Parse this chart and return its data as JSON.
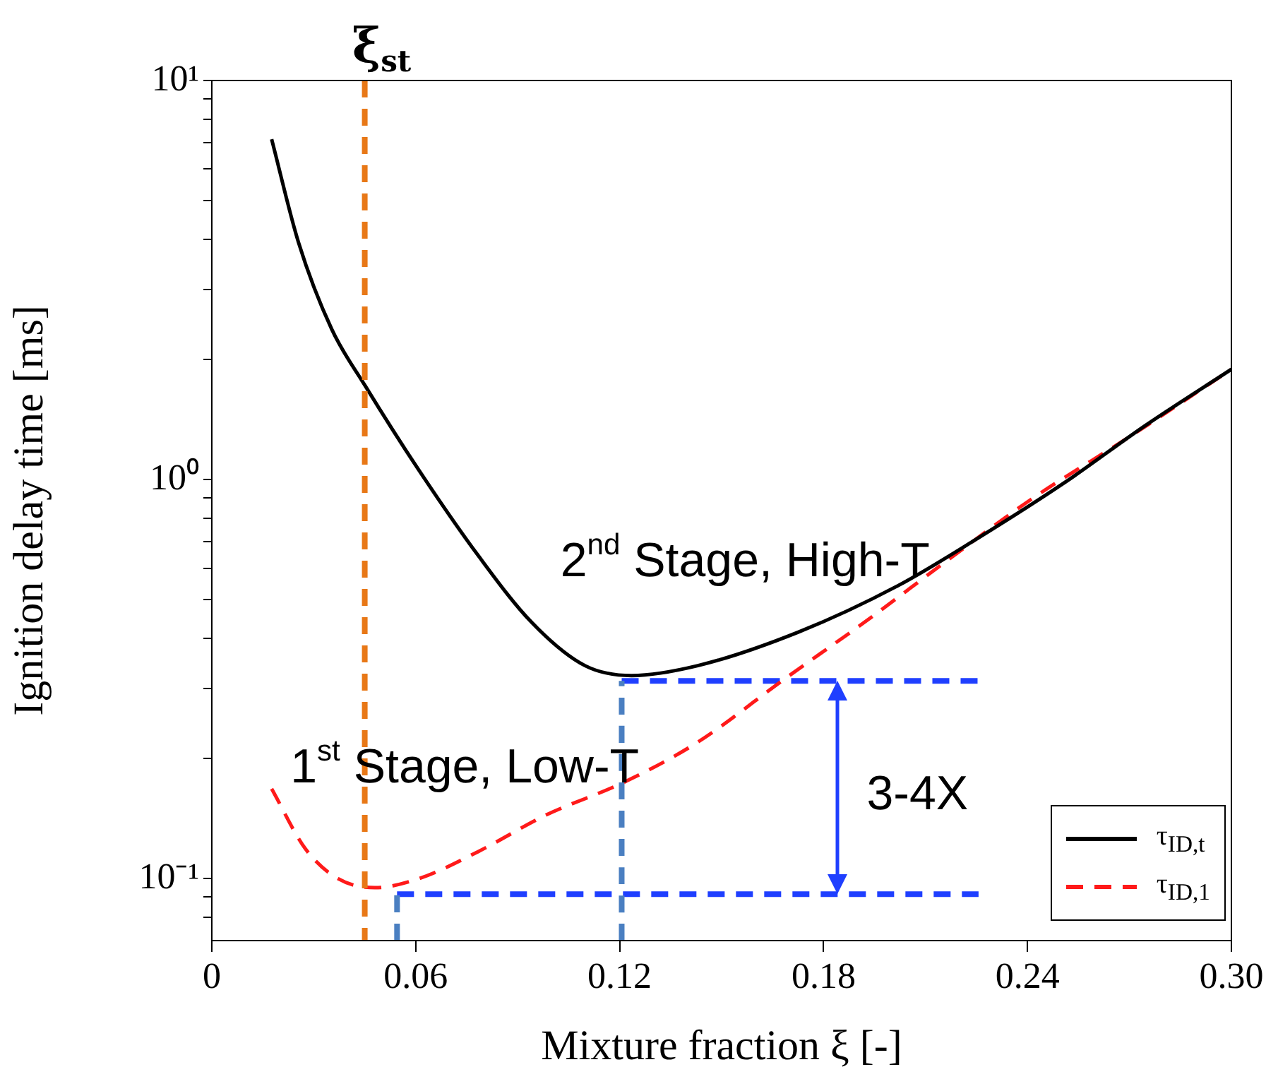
{
  "chart_data": {
    "type": "line",
    "xlabel": "Mixture fraction ξ [-]",
    "ylabel": "Ignition delay time [ms]",
    "log": "y",
    "xlim": [
      0,
      0.3
    ],
    "ylim": [
      0.07,
      10
    ],
    "xticks": [
      0,
      0.06,
      0.12,
      0.18,
      0.24,
      {
        "value": 0.3,
        "label": "0.30"
      }
    ],
    "yticks": [
      {
        "value": 0.08,
        "label": null
      },
      {
        "value": 0.09,
        "label": null
      },
      {
        "value": 0.1,
        "label": "10⁻¹"
      },
      {
        "value": 0.2,
        "label": null
      },
      {
        "value": 0.3,
        "label": null
      },
      {
        "value": 0.4,
        "label": null
      },
      {
        "value": 0.5,
        "label": null
      },
      {
        "value": 0.6,
        "label": null
      },
      {
        "value": 0.7,
        "label": null
      },
      {
        "value": 0.8,
        "label": null
      },
      {
        "value": 0.9,
        "label": null
      },
      {
        "value": 1,
        "label": "10⁰"
      },
      {
        "value": 2,
        "label": null
      },
      {
        "value": 3,
        "label": null
      },
      {
        "value": 4,
        "label": null
      },
      {
        "value": 5,
        "label": null
      },
      {
        "value": 6,
        "label": null
      },
      {
        "value": 7,
        "label": null
      },
      {
        "value": 8,
        "label": null
      },
      {
        "value": 9,
        "label": null
      },
      {
        "value": 10,
        "label": "10¹"
      }
    ],
    "grid": false,
    "legend": "bottom right",
    "marker": "none",
    "line_style": "solid",
    "series": [
      {
        "name": "τ$_{ID,t}$",
        "color": "#000000",
        "x": [
          0.0176,
          0.0255,
          0.0353,
          0.0451,
          0.0608,
          0.0784,
          0.0941,
          0.1098,
          0.1235,
          0.143,
          0.1726,
          0.202,
          0.2235,
          0.251,
          0.2746,
          0.3
        ],
        "values": [
          7.13,
          3.93,
          2.38,
          1.72,
          1.06,
          0.645,
          0.439,
          0.342,
          0.323,
          0.342,
          0.415,
          0.543,
          0.697,
          0.984,
          1.365,
          1.89
        ]
      },
      {
        "name": "τ$_{ID,1}$",
        "color": "#ff1a1a",
        "line_style": "dashed",
        "x": [
          0.0176,
          0.0275,
          0.0372,
          0.048,
          0.0608,
          0.0784,
          0.098,
          0.1216,
          0.143,
          0.1686,
          0.192,
          0.2157,
          0.2412,
          0.2706,
          0.3
        ],
        "values": [
          0.168,
          0.119,
          0.1,
          0.095,
          0.1,
          0.117,
          0.144,
          0.175,
          0.22,
          0.317,
          0.439,
          0.621,
          0.894,
          1.29,
          1.89
        ]
      },
      {
        "color": "#4a7fc1",
        "line_style": "dashed",
        "x": [
          0.0545,
          0.0545
        ],
        "values": [
          0.07,
          0.0915
        ]
      },
      {
        "color": "#4a7fc1",
        "line_style": "dashed",
        "x": [
          0.1206,
          0.1206
        ],
        "values": [
          0.07,
          0.313
        ]
      },
      {
        "color": "#1f3fff",
        "line_style": "dashed",
        "x": [
          0.0545,
          0.2256
        ],
        "values": [
          0.0915,
          0.0915
        ]
      },
      {
        "color": "#1f3fff",
        "line_style": "dashed",
        "x": [
          0.1206,
          0.2256
        ],
        "values": [
          0.313,
          0.313
        ]
      }
    ],
    "ref_lines": [
      {
        "axis": "x",
        "value": 0.045,
        "label": "ξ$_{st}$",
        "color": "#e87817",
        "line_style": "dashed"
      }
    ],
    "annotations": [
      "2$^{nd}$ Stage, High-T",
      "1$^{st}$ Stage, Low-T",
      "3-4X"
    ]
  }
}
